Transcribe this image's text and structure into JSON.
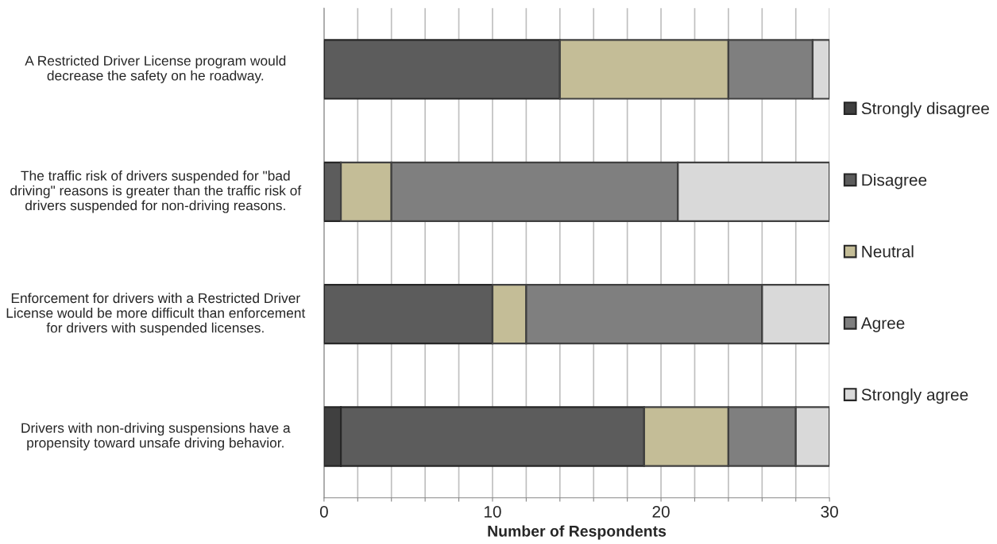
{
  "chart_data": {
    "type": "bar",
    "orientation": "horizontal",
    "stacked": true,
    "categories": [
      "A Restricted Driver License program would decrease the safety on he roadway.",
      "The traffic risk of drivers suspended for \"bad driving\" reasons is greater than the traffic risk of drivers suspended for non-driving reasons.",
      "Enforcement for drivers with a Restricted Driver License would be more difficult than enforcement for drivers with suspended licenses.",
      "Drivers with non-driving suspensions have a propensity toward unsafe driving behavior."
    ],
    "series": [
      {
        "name": "Strongly disagree",
        "color": "#404040",
        "values": [
          0,
          0,
          0,
          1
        ]
      },
      {
        "name": "Disagree",
        "color": "#5c5c5c",
        "values": [
          14,
          1,
          10,
          18
        ]
      },
      {
        "name": "Neutral",
        "color": "#c4bd97",
        "values": [
          10,
          3,
          2,
          5
        ]
      },
      {
        "name": "Agree",
        "color": "#7f7f7f",
        "values": [
          5,
          17,
          14,
          4
        ]
      },
      {
        "name": "Strongly agree",
        "color": "#d9d9d9",
        "values": [
          1,
          9,
          4,
          2
        ]
      }
    ],
    "xlabel": "Number of Respondents",
    "xlim": [
      0,
      30
    ],
    "xticks": [
      0,
      {
        "value": 2,
        "label": null
      },
      {
        "value": 4,
        "label": null
      },
      {
        "value": 6,
        "label": null
      },
      {
        "value": 8,
        "label": null
      },
      10,
      {
        "value": 12,
        "label": null
      },
      {
        "value": 14,
        "label": null
      },
      {
        "value": 16,
        "label": null
      },
      {
        "value": 18,
        "label": null
      },
      20,
      {
        "value": 22,
        "label": null
      },
      {
        "value": 24,
        "label": null
      },
      {
        "value": 26,
        "label": null
      },
      {
        "value": 28,
        "label": null
      },
      30
    ],
    "grid": "x",
    "legend": "right"
  }
}
